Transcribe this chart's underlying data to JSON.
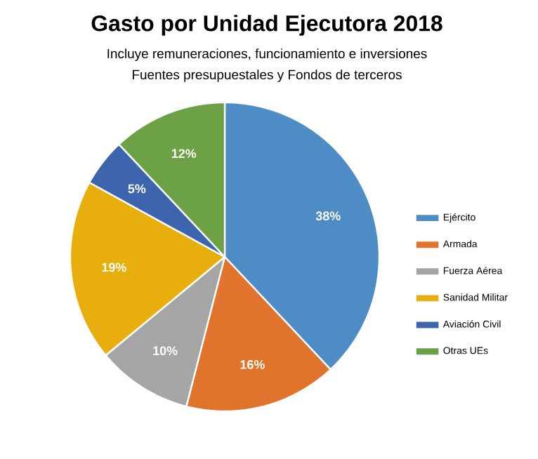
{
  "chart_data": {
    "type": "pie",
    "title": "Gasto por Unidad Ejecutora 2018",
    "subtitle": "Incluye remuneraciones, funcionamiento e inversiones",
    "annotations": [
      "Fuentes presupuestales y Fondos de terceros"
    ],
    "categories": [
      "Ejército",
      "Armada",
      "Fuerza Aérea",
      "Sanidad Militar",
      "Aviación Civil",
      "Otras UEs"
    ],
    "values": [
      38,
      16,
      10,
      19,
      5,
      12
    ],
    "colors": [
      "#4e8cc6",
      "#e0742c",
      "#a5a5a5",
      "#e8ae0e",
      "#3d65ae",
      "#6ca146"
    ],
    "value_labels": [
      "38%",
      "16%",
      "10%",
      "19%",
      "5%",
      "12%"
    ],
    "legend": "right"
  }
}
